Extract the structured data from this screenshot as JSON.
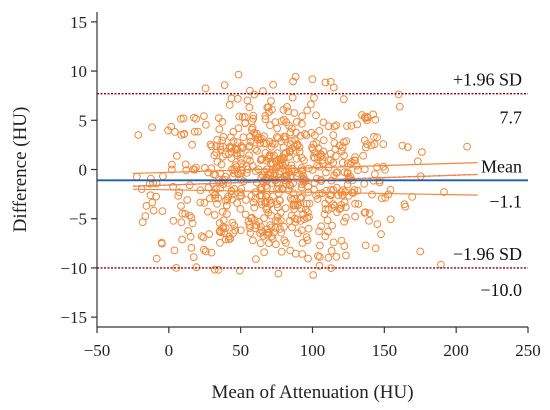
{
  "chart_data": {
    "type": "scatter",
    "title": "",
    "xlabel": "Mean of Attenuation (HU)",
    "ylabel": "Difference (HU)",
    "xlim": [
      -50,
      250
    ],
    "ylim": [
      -16,
      16
    ],
    "xticks": [
      "−50",
      "0",
      "50",
      "100",
      "150",
      "200",
      "250"
    ],
    "yticks": [
      "15",
      "10",
      "5",
      "0",
      "−5",
      "−10",
      "−15"
    ],
    "grid": false,
    "reference_lines": {
      "upper_loa": {
        "label": "+1.96 SD",
        "value_label": "7.7",
        "value": 7.7
      },
      "mean": {
        "label": "Mean",
        "value_label": "−1.1",
        "value": -1.1
      },
      "lower_loa": {
        "label": "−1.96 SD",
        "value_label": "−10.0",
        "value": -10.0
      }
    },
    "regression_line": {
      "x": [
        -25,
        215
      ],
      "y": [
        -1.7,
        -0.5
      ]
    },
    "confidence_band": {
      "x": [
        -25,
        215
      ],
      "upper": [
        -0.4,
        0.7
      ],
      "lower": [
        -2.0,
        -2.6
      ]
    },
    "point_cloud": {
      "n": 700,
      "x_range": [
        -25,
        215
      ],
      "y_range": [
        -10.8,
        10.4
      ],
      "mean_x": 75,
      "sd_x": 42,
      "mean_y": -1.1,
      "sd_y": 4.3
    },
    "colors": {
      "points": "#f08a3c",
      "mean_line": "#1f5fa8",
      "loa_line": "#8b0000",
      "regression": "#f08a3c",
      "dashed_mean": "#e020e0",
      "axis": "#333333"
    }
  }
}
